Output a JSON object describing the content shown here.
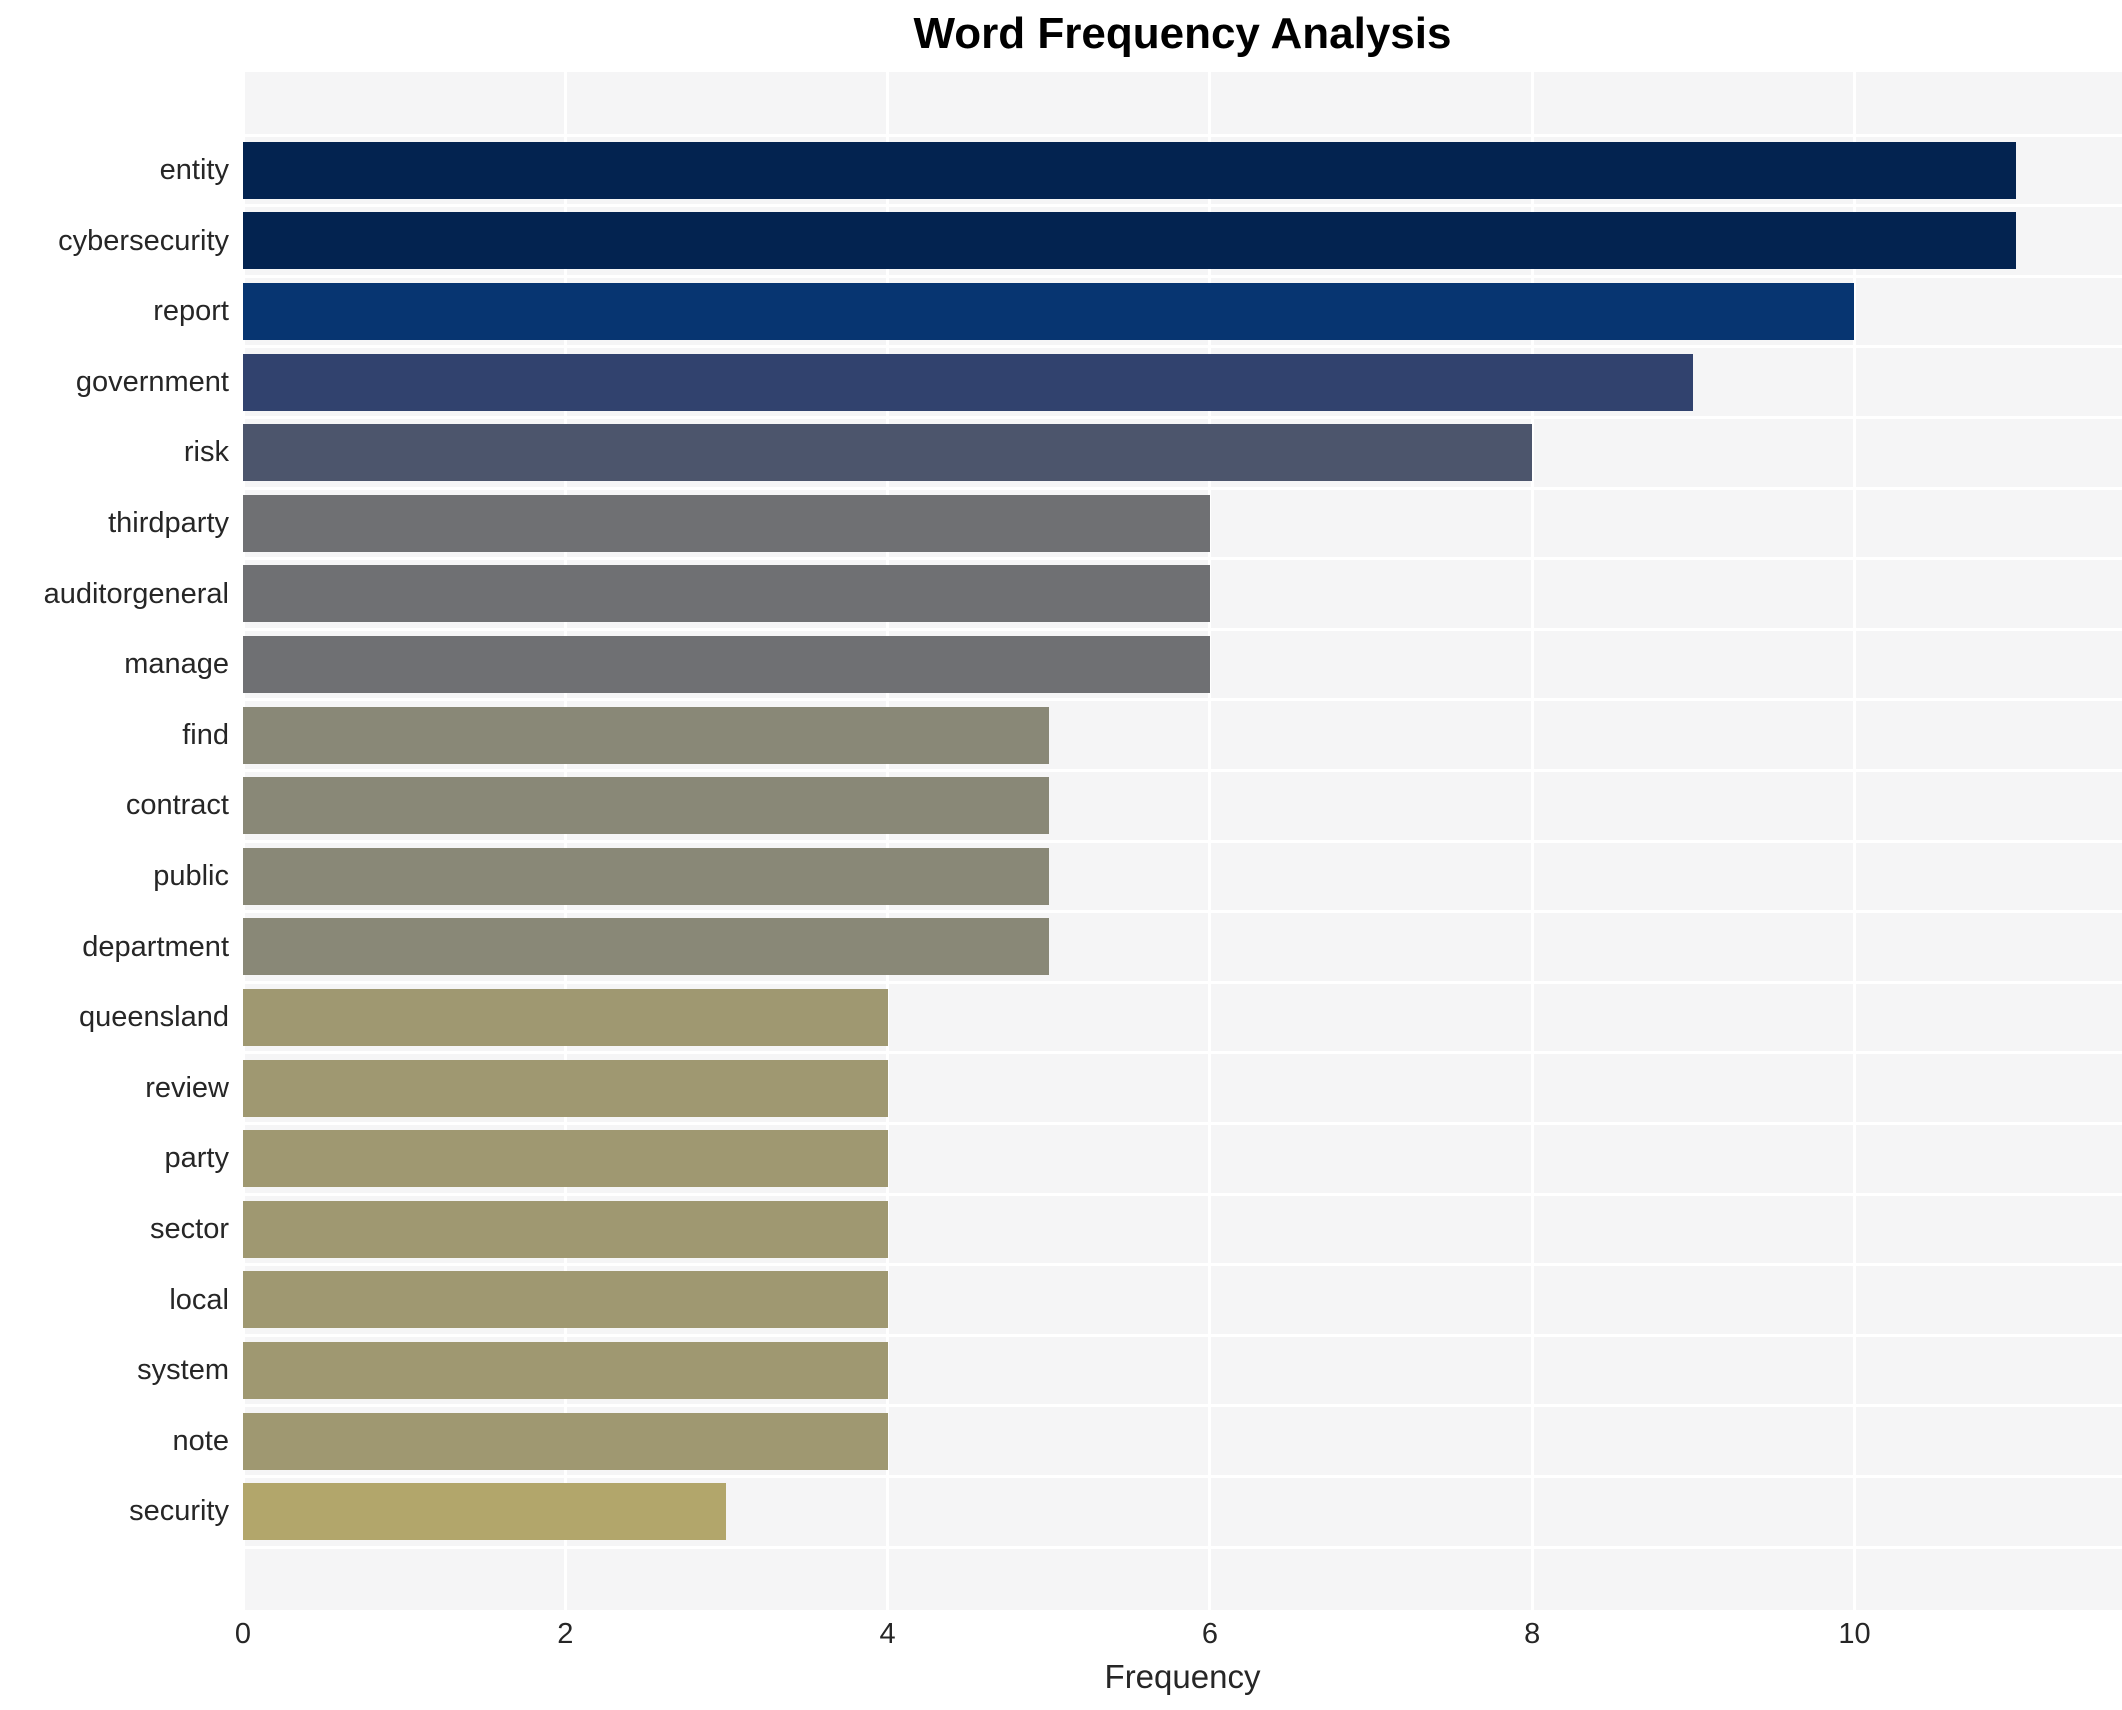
{
  "chart_data": {
    "type": "bar",
    "orientation": "horizontal",
    "title": "Word Frequency Analysis",
    "xlabel": "Frequency",
    "ylabel": "",
    "xlim": [
      0,
      11.66
    ],
    "xticks": [
      0,
      2,
      4,
      6,
      8,
      10
    ],
    "grid": true,
    "legend": "none",
    "plot_bg_color": "#f5f5f6",
    "grid_color": "#ffffff",
    "categories": [
      "entity",
      "cybersecurity",
      "report",
      "government",
      "risk",
      "thirdparty",
      "auditorgeneral",
      "manage",
      "find",
      "contract",
      "public",
      "department",
      "queensland",
      "review",
      "party",
      "sector",
      "local",
      "system",
      "note",
      "security"
    ],
    "values": [
      11,
      11,
      10,
      9,
      8,
      6,
      6,
      6,
      5,
      5,
      5,
      5,
      4,
      4,
      4,
      4,
      4,
      4,
      4,
      3
    ],
    "bar_colors": [
      "#032350",
      "#032350",
      "#073571",
      "#31426e",
      "#4c556c",
      "#6f7073",
      "#6f7073",
      "#6f7073",
      "#898877",
      "#898877",
      "#898877",
      "#898877",
      "#9f9871",
      "#9f9871",
      "#9f9871",
      "#9f9871",
      "#9f9871",
      "#9f9871",
      "#9f9871",
      "#b2a66b"
    ]
  }
}
